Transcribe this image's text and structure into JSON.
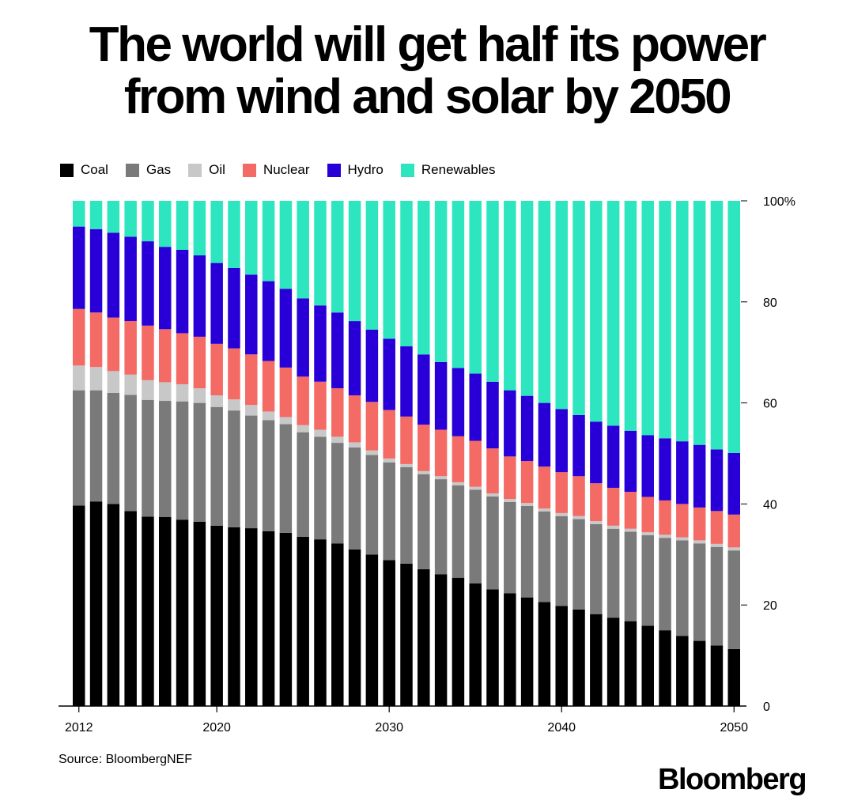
{
  "title_line1": "The world will get half its power",
  "title_line2": "from wind and solar by 2050",
  "source": "Source: BloombergNEF",
  "logo": "Bloomberg",
  "chart_data": {
    "type": "bar",
    "stacked": true,
    "title": "The world will get half its power from wind and solar by 2050",
    "xlabel": "",
    "ylabel": "",
    "ylim": [
      0,
      100
    ],
    "y_ticks": [
      "0",
      "20",
      "40",
      "60",
      "80",
      "100%"
    ],
    "x_ticks": [
      "2012",
      "2020",
      "2030",
      "2040",
      "2050"
    ],
    "legend_position": "top-left",
    "grid": false,
    "categories": [
      "2012",
      "2013",
      "2014",
      "2015",
      "2016",
      "2017",
      "2018",
      "2019",
      "2020",
      "2021",
      "2022",
      "2023",
      "2024",
      "2025",
      "2026",
      "2027",
      "2028",
      "2029",
      "2030",
      "2031",
      "2032",
      "2033",
      "2034",
      "2035",
      "2036",
      "2037",
      "2038",
      "2039",
      "2040",
      "2041",
      "2042",
      "2043",
      "2044",
      "2045",
      "2046",
      "2047",
      "2048",
      "2049",
      "2050"
    ],
    "series": [
      {
        "name": "Coal",
        "color": "#000000",
        "values": [
          39.7,
          40.5,
          40.0,
          38.6,
          37.5,
          37.4,
          36.9,
          36.5,
          35.7,
          35.4,
          35.2,
          34.6,
          34.3,
          33.5,
          33.0,
          32.2,
          31.0,
          30.0,
          28.9,
          28.2,
          27.1,
          26.1,
          25.4,
          24.3,
          23.1,
          22.3,
          21.5,
          20.6,
          19.8,
          19.1,
          18.2,
          17.5,
          16.8,
          15.9,
          15.0,
          13.9,
          12.9,
          12.0,
          11.3
        ]
      },
      {
        "name": "Gas",
        "color": "#7a7a7a",
        "values": [
          22.8,
          22.0,
          22.0,
          23.0,
          23.1,
          23.0,
          23.4,
          23.5,
          23.5,
          23.1,
          22.3,
          22.0,
          21.5,
          20.7,
          20.3,
          19.9,
          20.2,
          19.7,
          19.3,
          19.1,
          18.8,
          18.8,
          18.3,
          18.5,
          18.4,
          18.1,
          18.1,
          17.9,
          17.8,
          17.9,
          17.8,
          17.6,
          17.7,
          17.9,
          18.3,
          18.9,
          19.3,
          19.5,
          19.5
        ]
      },
      {
        "name": "Oil",
        "color": "#c8c8c8",
        "values": [
          4.9,
          4.6,
          4.3,
          4.0,
          3.9,
          3.7,
          3.4,
          2.9,
          2.3,
          2.2,
          2.1,
          1.7,
          1.4,
          1.4,
          1.4,
          1.2,
          1.0,
          0.9,
          0.8,
          0.6,
          0.6,
          0.6,
          0.6,
          0.6,
          0.6,
          0.6,
          0.6,
          0.6,
          0.6,
          0.6,
          0.6,
          0.6,
          0.6,
          0.6,
          0.6,
          0.6,
          0.6,
          0.6,
          0.6
        ]
      },
      {
        "name": "Nuclear",
        "color": "#f46a64",
        "values": [
          11.2,
          10.8,
          10.6,
          10.6,
          10.8,
          10.5,
          10.1,
          10.2,
          10.2,
          10.1,
          10.0,
          10.0,
          9.8,
          9.6,
          9.5,
          9.6,
          9.3,
          9.6,
          9.6,
          9.4,
          9.2,
          9.2,
          9.1,
          9.1,
          8.9,
          8.4,
          8.3,
          8.3,
          8.1,
          7.9,
          7.5,
          7.5,
          7.3,
          7.0,
          6.8,
          6.6,
          6.5,
          6.5,
          6.5
        ]
      },
      {
        "name": "Hydro",
        "color": "#2800d7",
        "values": [
          16.3,
          16.5,
          16.8,
          16.7,
          16.7,
          16.3,
          16.5,
          16.1,
          16.0,
          15.9,
          15.8,
          15.8,
          15.6,
          15.5,
          15.1,
          15.0,
          14.7,
          14.3,
          14.1,
          13.9,
          13.9,
          13.4,
          13.5,
          13.3,
          13.2,
          13.1,
          12.9,
          12.6,
          12.5,
          12.1,
          12.2,
          12.3,
          12.1,
          12.2,
          12.3,
          12.4,
          12.4,
          12.2,
          12.2
        ]
      },
      {
        "name": "Renewables",
        "color": "#2de6bf",
        "values": [
          5.1,
          5.6,
          6.3,
          7.1,
          8.0,
          9.1,
          9.7,
          10.8,
          12.3,
          13.3,
          14.6,
          15.9,
          17.4,
          19.3,
          20.7,
          22.1,
          23.8,
          25.5,
          27.3,
          28.8,
          30.4,
          31.9,
          33.1,
          34.2,
          35.8,
          37.5,
          38.6,
          40.0,
          41.2,
          42.4,
          43.7,
          44.5,
          45.5,
          46.4,
          47.0,
          47.6,
          48.3,
          49.2,
          49.9
        ]
      }
    ]
  }
}
